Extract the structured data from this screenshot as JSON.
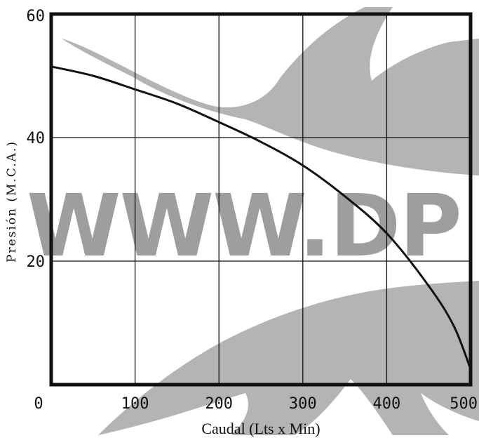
{
  "chart_data": {
    "type": "line",
    "title": "",
    "xlabel": "Caudal (Lts x Min)",
    "ylabel": "Presión (M.C.A.)",
    "xlim": [
      0,
      500
    ],
    "ylim": [
      0,
      60
    ],
    "x_ticks": [
      "0",
      "100",
      "200",
      "300",
      "400",
      "500"
    ],
    "y_ticks": [
      "20",
      "40",
      "60"
    ],
    "grid": true,
    "series": [
      {
        "x": [
          0,
          50,
          100,
          150,
          200,
          250,
          300,
          350,
          400,
          450,
          480,
          500
        ],
        "values": [
          51.5,
          50,
          47.8,
          45.5,
          42.5,
          39.3,
          35.5,
          30.5,
          24.5,
          16,
          9.5,
          2.5
        ]
      }
    ],
    "line_color": "#111111",
    "watermark": "WWW.DP"
  }
}
